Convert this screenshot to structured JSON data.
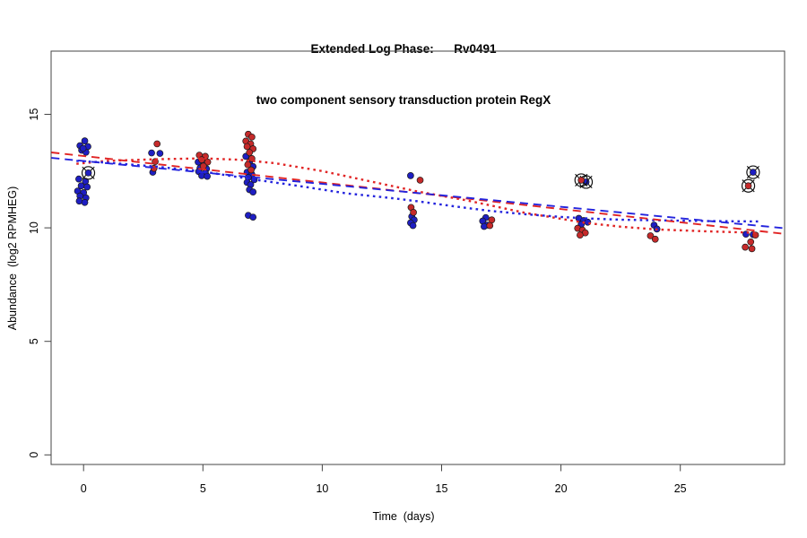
{
  "figure": {
    "title_line1": "Extended Log Phase:      Rv0491",
    "title_line2": "two component sensory transduction protein RegX"
  },
  "chart_data": {
    "type": "scatter",
    "title": "Extended Log Phase: Rv0491",
    "subtitle": "two component sensory transduction protein RegX",
    "xlabel": "Time  (days)",
    "ylabel": "Abundance  (log2 RPMHEG)",
    "x_ticks": [
      0,
      5,
      10,
      15,
      20,
      25
    ],
    "y_ticks": [
      0,
      5,
      10,
      15
    ],
    "xlim": [
      -1.35,
      29.4
    ],
    "ylim": [
      -0.42,
      17.8
    ],
    "grid": false,
    "legend": false,
    "frame_color": "#444444",
    "colors": {
      "blue": "#1E1EC3",
      "red": "#C62A2A",
      "line_blue": "#2424DD",
      "line_red": "#E12525",
      "annotation": "#111111"
    },
    "series": [
      {
        "name": "blue-replicates",
        "type": "scatter",
        "marker": "dot",
        "color": "#1E1EC3",
        "points": [
          [
            -0.15,
            13.62
          ],
          [
            0.05,
            13.83
          ],
          [
            0.18,
            13.58
          ],
          [
            -0.08,
            13.42
          ],
          [
            0.1,
            13.33
          ],
          [
            -0.02,
            13.5
          ],
          [
            -0.2,
            12.15
          ],
          [
            0.08,
            12.05
          ],
          [
            -0.1,
            11.85
          ],
          [
            0.15,
            11.8
          ],
          [
            -0.25,
            11.62
          ],
          [
            0.0,
            11.55
          ],
          [
            -0.15,
            11.4
          ],
          [
            0.1,
            11.32
          ],
          [
            -0.18,
            11.18
          ],
          [
            0.05,
            11.12
          ],
          [
            2.85,
            13.3
          ],
          [
            3.2,
            13.28
          ],
          [
            2.9,
            12.45
          ],
          [
            4.8,
            12.9
          ],
          [
            5.05,
            12.85
          ],
          [
            4.88,
            12.63
          ],
          [
            5.15,
            12.6
          ],
          [
            4.82,
            12.48
          ],
          [
            5.1,
            12.42
          ],
          [
            4.95,
            12.3
          ],
          [
            5.18,
            12.27
          ],
          [
            6.8,
            13.15
          ],
          [
            6.95,
            12.9
          ],
          [
            7.1,
            12.7
          ],
          [
            6.85,
            12.45
          ],
          [
            7.05,
            12.35
          ],
          [
            6.9,
            12.22
          ],
          [
            7.15,
            12.12
          ],
          [
            6.85,
            12.0
          ],
          [
            7.0,
            11.9
          ],
          [
            6.95,
            11.68
          ],
          [
            7.1,
            11.58
          ],
          [
            6.9,
            10.55
          ],
          [
            7.1,
            10.47
          ],
          [
            13.7,
            12.3
          ],
          [
            13.75,
            10.5
          ],
          [
            13.85,
            10.35
          ],
          [
            13.7,
            10.22
          ],
          [
            13.8,
            10.1
          ],
          [
            16.85,
            10.45
          ],
          [
            16.72,
            10.3
          ],
          [
            16.9,
            10.12
          ],
          [
            16.78,
            10.06
          ],
          [
            20.75,
            10.42
          ],
          [
            20.95,
            10.32
          ],
          [
            21.12,
            10.25
          ],
          [
            20.85,
            10.15
          ],
          [
            23.9,
            10.12
          ],
          [
            24.02,
            9.95
          ],
          [
            27.75,
            9.72
          ],
          [
            28.05,
            9.7
          ]
        ]
      },
      {
        "name": "red-replicates",
        "type": "scatter",
        "marker": "dot",
        "color": "#C62A2A",
        "points": [
          [
            3.08,
            13.7
          ],
          [
            3.0,
            12.92
          ],
          [
            2.95,
            12.62
          ],
          [
            4.85,
            13.2
          ],
          [
            5.1,
            13.15
          ],
          [
            4.95,
            13.0
          ],
          [
            5.2,
            12.9
          ],
          [
            5.02,
            12.72
          ],
          [
            6.9,
            14.12
          ],
          [
            7.05,
            14.0
          ],
          [
            6.8,
            13.82
          ],
          [
            7.0,
            13.7
          ],
          [
            6.85,
            13.58
          ],
          [
            7.1,
            13.48
          ],
          [
            6.95,
            13.32
          ],
          [
            7.05,
            13.05
          ],
          [
            6.88,
            12.78
          ],
          [
            7.02,
            12.55
          ],
          [
            14.1,
            12.1
          ],
          [
            13.72,
            10.9
          ],
          [
            13.82,
            10.68
          ],
          [
            17.1,
            10.35
          ],
          [
            17.02,
            10.1
          ],
          [
            20.7,
            9.98
          ],
          [
            20.9,
            9.9
          ],
          [
            21.02,
            9.78
          ],
          [
            20.8,
            9.68
          ],
          [
            23.75,
            9.65
          ],
          [
            23.95,
            9.5
          ],
          [
            28.15,
            9.68
          ],
          [
            27.95,
            9.38
          ],
          [
            27.72,
            9.15
          ],
          [
            28.0,
            9.08
          ]
        ]
      },
      {
        "name": "red-loess-fit",
        "type": "line",
        "style": "dotted",
        "color": "#E12525",
        "points": [
          [
            -0.3,
            12.82
          ],
          [
            1,
            12.95
          ],
          [
            3,
            13.02
          ],
          [
            5,
            13.06
          ],
          [
            6.5,
            13.0
          ],
          [
            8,
            12.85
          ],
          [
            10,
            12.5
          ],
          [
            12,
            12.05
          ],
          [
            14,
            11.6
          ],
          [
            16,
            11.22
          ],
          [
            17,
            11.0
          ],
          [
            18.5,
            10.66
          ],
          [
            20,
            10.4
          ],
          [
            21,
            10.22
          ],
          [
            22.5,
            10.05
          ],
          [
            24,
            9.93
          ],
          [
            26,
            9.85
          ],
          [
            28.3,
            9.78
          ]
        ]
      },
      {
        "name": "blue-loess-fit",
        "type": "line",
        "style": "dotted",
        "color": "#2424DD",
        "points": [
          [
            -0.3,
            12.95
          ],
          [
            1,
            12.87
          ],
          [
            3,
            12.7
          ],
          [
            5,
            12.48
          ],
          [
            7,
            12.15
          ],
          [
            9,
            11.85
          ],
          [
            11,
            11.52
          ],
          [
            13,
            11.3
          ],
          [
            14,
            11.17
          ],
          [
            15.5,
            10.95
          ],
          [
            17,
            10.75
          ],
          [
            18.5,
            10.6
          ],
          [
            20,
            10.48
          ],
          [
            21,
            10.42
          ],
          [
            22.5,
            10.36
          ],
          [
            24,
            10.33
          ],
          [
            26,
            10.3
          ],
          [
            28.3,
            10.28
          ]
        ]
      },
      {
        "name": "red-linear-fit",
        "type": "line",
        "style": "dashed",
        "color": "#E12525",
        "points": [
          [
            -1.35,
            13.32
          ],
          [
            29.4,
            9.73
          ]
        ]
      },
      {
        "name": "blue-linear-fit",
        "type": "line",
        "style": "dashed",
        "color": "#2424DD",
        "points": [
          [
            -1.35,
            13.08
          ],
          [
            29.4,
            9.98
          ]
        ]
      },
      {
        "name": "blue-outliers-circled",
        "type": "scatter",
        "marker": "circled",
        "color": "#1E1EC3",
        "points": [
          [
            0.2,
            12.42
          ],
          [
            21.05,
            12.02
          ],
          [
            28.05,
            12.45
          ]
        ]
      },
      {
        "name": "red-outliers-circled",
        "type": "scatter",
        "marker": "circled",
        "color": "#C62A2A",
        "points": [
          [
            20.85,
            12.1
          ],
          [
            27.85,
            11.85
          ]
        ]
      }
    ]
  }
}
